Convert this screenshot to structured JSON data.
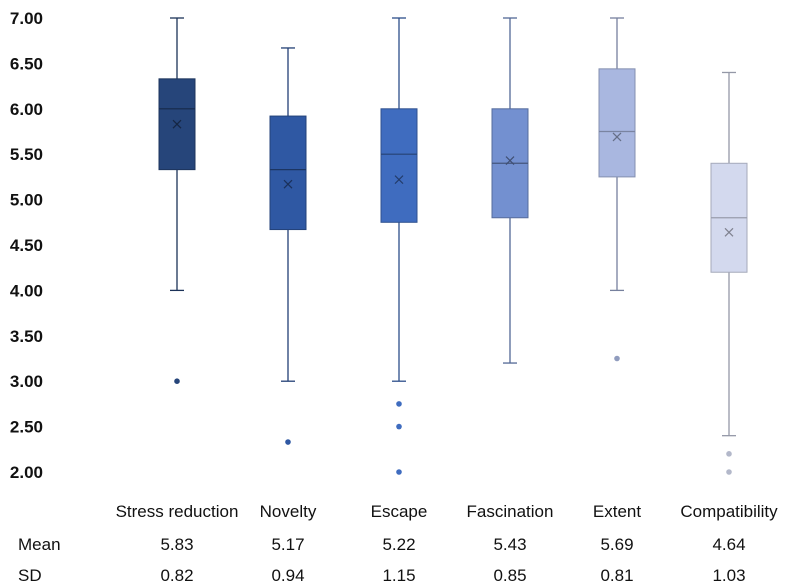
{
  "chart_data": {
    "type": "box",
    "title": "",
    "xlabel": "",
    "ylabel": "",
    "ylim": [
      2.0,
      7.0
    ],
    "yticks": [
      "7.00",
      "6.50",
      "6.00",
      "5.50",
      "5.00",
      "4.50",
      "4.00",
      "3.50",
      "3.00",
      "2.50",
      "2.00"
    ],
    "grid": false,
    "categories": [
      "Stress reduction",
      "Novelty",
      "Escape",
      "Fascination",
      "Extent",
      "Compatibility"
    ],
    "boxes": [
      {
        "category": "Stress reduction",
        "whisker_low": 4.0,
        "q1": 5.33,
        "median": 6.0,
        "q3": 6.33,
        "whisker_high": 7.0,
        "mean": 5.83,
        "outliers": [
          3.0
        ],
        "color": "#26457a"
      },
      {
        "category": "Novelty",
        "whisker_low": 3.0,
        "q1": 4.67,
        "median": 5.33,
        "q3": 5.92,
        "whisker_high": 6.67,
        "mean": 5.17,
        "outliers": [
          2.33
        ],
        "color": "#2f58a3"
      },
      {
        "category": "Escape",
        "whisker_low": 3.0,
        "q1": 4.75,
        "median": 5.5,
        "q3": 6.0,
        "whisker_high": 7.0,
        "mean": 5.22,
        "outliers": [
          2.75,
          2.5,
          2.0
        ],
        "color": "#3f6cbf"
      },
      {
        "category": "Fascination",
        "whisker_low": 3.2,
        "q1": 4.8,
        "median": 5.4,
        "q3": 6.0,
        "whisker_high": 7.0,
        "mean": 5.43,
        "outliers": [],
        "color": "#7390d0"
      },
      {
        "category": "Extent",
        "whisker_low": 4.0,
        "q1": 5.25,
        "median": 5.75,
        "q3": 6.44,
        "whisker_high": 7.0,
        "mean": 5.69,
        "outliers": [
          3.25
        ],
        "color": "#a9b7e0"
      },
      {
        "category": "Compatibility",
        "whisker_low": 2.4,
        "q1": 4.2,
        "median": 4.8,
        "q3": 5.4,
        "whisker_high": 6.4,
        "mean": 4.64,
        "outliers": [
          2.2,
          2.0
        ],
        "color": "#d3d9ee"
      }
    ],
    "stats_table": {
      "rows": [
        {
          "label": "Mean",
          "values": [
            "5.83",
            "5.17",
            "5.22",
            "5.43",
            "5.69",
            "4.64"
          ]
        },
        {
          "label": "SD",
          "values": [
            "0.82",
            "0.94",
            "1.15",
            "0.85",
            "0.81",
            "1.03"
          ]
        }
      ]
    }
  }
}
